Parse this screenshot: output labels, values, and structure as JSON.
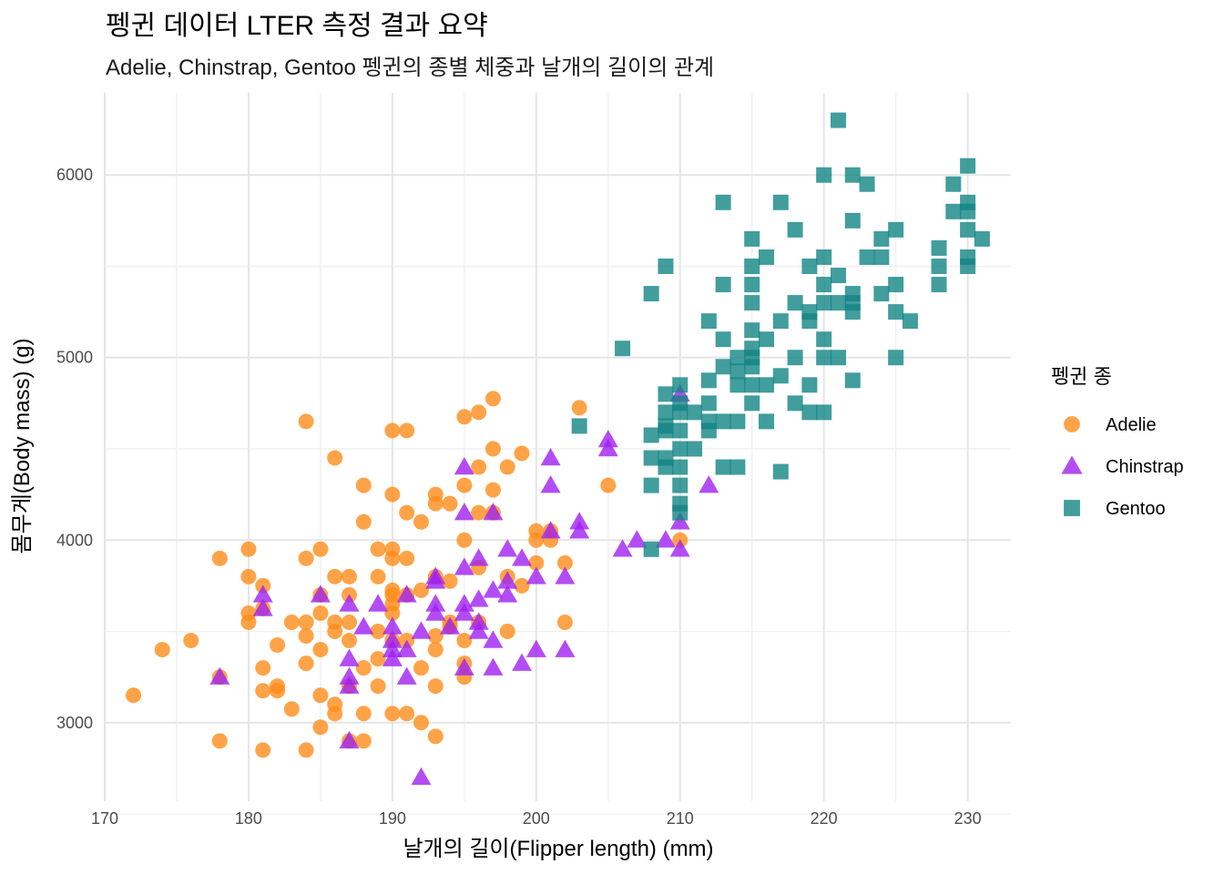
{
  "chart_data": {
    "type": "scatter",
    "title": "펭귄 데이터 LTER 측정 결과 요약",
    "subtitle": "Adelie, Chinstrap, Gentoo 펭귄의 종별 체중과 날개의 길이의 관계",
    "xlabel": "날개의 길이(Flipper length) (mm)",
    "ylabel": "몸무게(Body mass) (g)",
    "xlim": [
      170,
      233
    ],
    "ylim": [
      2570,
      6450
    ],
    "xticks": [
      170,
      180,
      190,
      200,
      210,
      220,
      230
    ],
    "yticks": [
      3000,
      4000,
      5000,
      6000
    ],
    "grid": true,
    "legend": {
      "title": "펭귄 종",
      "position": "right"
    },
    "series": [
      {
        "name": "Adelie",
        "color": "#FF8C1A",
        "shape": "circle",
        "points": [
          [
            172,
            3150
          ],
          [
            174,
            3400
          ],
          [
            176,
            3450
          ],
          [
            178,
            3900
          ],
          [
            178,
            2900
          ],
          [
            178,
            3250
          ],
          [
            180,
            3950
          ],
          [
            180,
            3800
          ],
          [
            180,
            3600
          ],
          [
            180,
            3550
          ],
          [
            181,
            3750
          ],
          [
            181,
            3300
          ],
          [
            181,
            3175
          ],
          [
            181,
            2850
          ],
          [
            181,
            3625
          ],
          [
            182,
            3425
          ],
          [
            182,
            3200
          ],
          [
            182,
            3175
          ],
          [
            183,
            3550
          ],
          [
            183,
            3075
          ],
          [
            184,
            4650
          ],
          [
            184,
            3900
          ],
          [
            184,
            3475
          ],
          [
            184,
            3325
          ],
          [
            184,
            2850
          ],
          [
            184,
            3550
          ],
          [
            185,
            3950
          ],
          [
            185,
            3700
          ],
          [
            185,
            3400
          ],
          [
            185,
            3150
          ],
          [
            185,
            2975
          ],
          [
            185,
            3600
          ],
          [
            186,
            4450
          ],
          [
            186,
            3800
          ],
          [
            186,
            3550
          ],
          [
            186,
            3500
          ],
          [
            186,
            3100
          ],
          [
            186,
            3050
          ],
          [
            187,
            3800
          ],
          [
            187,
            3700
          ],
          [
            187,
            3550
          ],
          [
            187,
            3450
          ],
          [
            187,
            3200
          ],
          [
            187,
            2900
          ],
          [
            188,
            4300
          ],
          [
            188,
            4100
          ],
          [
            188,
            3300
          ],
          [
            188,
            3050
          ],
          [
            188,
            2900
          ],
          [
            189,
            3950
          ],
          [
            189,
            3800
          ],
          [
            189,
            3500
          ],
          [
            189,
            3350
          ],
          [
            189,
            3200
          ],
          [
            190,
            4600
          ],
          [
            190,
            4250
          ],
          [
            190,
            3950
          ],
          [
            190,
            3900
          ],
          [
            190,
            3725
          ],
          [
            190,
            3700
          ],
          [
            190,
            3650
          ],
          [
            190,
            3600
          ],
          [
            190,
            3450
          ],
          [
            190,
            3050
          ],
          [
            191,
            4600
          ],
          [
            191,
            4150
          ],
          [
            191,
            3900
          ],
          [
            191,
            3700
          ],
          [
            191,
            3450
          ],
          [
            191,
            3050
          ],
          [
            192,
            4100
          ],
          [
            192,
            3725
          ],
          [
            192,
            3300
          ],
          [
            192,
            3000
          ],
          [
            193,
            4250
          ],
          [
            193,
            4200
          ],
          [
            193,
            3800
          ],
          [
            193,
            3475
          ],
          [
            193,
            3400
          ],
          [
            193,
            3200
          ],
          [
            193,
            2925
          ],
          [
            194,
            4200
          ],
          [
            194,
            3775
          ],
          [
            194,
            3550
          ],
          [
            194,
            3525
          ],
          [
            195,
            4675
          ],
          [
            195,
            4300
          ],
          [
            195,
            4000
          ],
          [
            195,
            3450
          ],
          [
            195,
            3325
          ],
          [
            195,
            3250
          ],
          [
            196,
            4700
          ],
          [
            196,
            4400
          ],
          [
            196,
            4150
          ],
          [
            196,
            3850
          ],
          [
            196,
            3550
          ],
          [
            197,
            4775
          ],
          [
            197,
            4500
          ],
          [
            197,
            4275
          ],
          [
            197,
            4150
          ],
          [
            198,
            4400
          ],
          [
            198,
            3500
          ],
          [
            198,
            3800
          ],
          [
            199,
            4475
          ],
          [
            199,
            3750
          ],
          [
            200,
            4050
          ],
          [
            200,
            4000
          ],
          [
            200,
            3875
          ],
          [
            201,
            4000
          ],
          [
            201,
            4050
          ],
          [
            202,
            3875
          ],
          [
            202,
            3550
          ],
          [
            203,
            4725
          ],
          [
            205,
            4300
          ],
          [
            210,
            4000
          ]
        ]
      },
      {
        "name": "Chinstrap",
        "color": "#A020F0",
        "shape": "triangle",
        "points": [
          [
            178,
            3250
          ],
          [
            181,
            3700
          ],
          [
            181,
            3625
          ],
          [
            185,
            3700
          ],
          [
            187,
            3650
          ],
          [
            187,
            3350
          ],
          [
            187,
            3250
          ],
          [
            187,
            3200
          ],
          [
            187,
            2900
          ],
          [
            188,
            3525
          ],
          [
            189,
            3650
          ],
          [
            190,
            3525
          ],
          [
            190,
            3450
          ],
          [
            190,
            3400
          ],
          [
            190,
            3350
          ],
          [
            191,
            3700
          ],
          [
            191,
            3400
          ],
          [
            191,
            3250
          ],
          [
            192,
            3500
          ],
          [
            192,
            2700
          ],
          [
            193,
            3800
          ],
          [
            193,
            3775
          ],
          [
            193,
            3650
          ],
          [
            193,
            3600
          ],
          [
            194,
            3525
          ],
          [
            195,
            4400
          ],
          [
            195,
            4150
          ],
          [
            195,
            3850
          ],
          [
            195,
            3650
          ],
          [
            195,
            3600
          ],
          [
            195,
            3300
          ],
          [
            196,
            3900
          ],
          [
            196,
            3675
          ],
          [
            196,
            3550
          ],
          [
            196,
            3500
          ],
          [
            197,
            4150
          ],
          [
            197,
            3725
          ],
          [
            197,
            3450
          ],
          [
            197,
            3300
          ],
          [
            198,
            3950
          ],
          [
            198,
            3775
          ],
          [
            198,
            3700
          ],
          [
            199,
            3900
          ],
          [
            199,
            3325
          ],
          [
            200,
            3800
          ],
          [
            201,
            4450
          ],
          [
            201,
            4300
          ],
          [
            201,
            4050
          ],
          [
            202,
            3800
          ],
          [
            202,
            3400
          ],
          [
            203,
            4100
          ],
          [
            203,
            4050
          ],
          [
            205,
            4550
          ],
          [
            205,
            4500
          ],
          [
            206,
            3950
          ],
          [
            207,
            4000
          ],
          [
            209,
            4000
          ],
          [
            210,
            4800
          ],
          [
            210,
            4100
          ],
          [
            210,
            3950
          ],
          [
            212,
            4300
          ],
          [
            200,
            3400
          ]
        ]
      },
      {
        "name": "Gentoo",
        "color": "#138585",
        "shape": "square",
        "points": [
          [
            203,
            4625
          ],
          [
            206,
            5050
          ],
          [
            208,
            5350
          ],
          [
            208,
            4575
          ],
          [
            208,
            4450
          ],
          [
            208,
            4300
          ],
          [
            208,
            3950
          ],
          [
            209,
            5500
          ],
          [
            209,
            4800
          ],
          [
            209,
            4700
          ],
          [
            209,
            4625
          ],
          [
            209,
            4600
          ],
          [
            209,
            4450
          ],
          [
            209,
            4400
          ],
          [
            210,
            4850
          ],
          [
            210,
            4750
          ],
          [
            210,
            4700
          ],
          [
            210,
            4600
          ],
          [
            210,
            4500
          ],
          [
            210,
            4400
          ],
          [
            210,
            4300
          ],
          [
            210,
            4200
          ],
          [
            210,
            4150
          ],
          [
            211,
            4700
          ],
          [
            211,
            4500
          ],
          [
            212,
            5200
          ],
          [
            212,
            4875
          ],
          [
            212,
            4750
          ],
          [
            212,
            4650
          ],
          [
            212,
            4600
          ],
          [
            213,
            5850
          ],
          [
            213,
            5400
          ],
          [
            213,
            5100
          ],
          [
            213,
            4950
          ],
          [
            213,
            4650
          ],
          [
            213,
            4400
          ],
          [
            214,
            5000
          ],
          [
            214,
            4925
          ],
          [
            214,
            4850
          ],
          [
            214,
            4650
          ],
          [
            214,
            4400
          ],
          [
            215,
            5650
          ],
          [
            215,
            5500
          ],
          [
            215,
            5400
          ],
          [
            215,
            5300
          ],
          [
            215,
            5150
          ],
          [
            215,
            5050
          ],
          [
            215,
            5000
          ],
          [
            215,
            4950
          ],
          [
            215,
            4850
          ],
          [
            215,
            4750
          ],
          [
            216,
            5550
          ],
          [
            216,
            5100
          ],
          [
            216,
            4850
          ],
          [
            216,
            4650
          ],
          [
            217,
            5850
          ],
          [
            217,
            5200
          ],
          [
            217,
            4900
          ],
          [
            217,
            4375
          ],
          [
            218,
            5700
          ],
          [
            218,
            5300
          ],
          [
            218,
            5000
          ],
          [
            218,
            4750
          ],
          [
            219,
            5500
          ],
          [
            219,
            5250
          ],
          [
            219,
            5200
          ],
          [
            219,
            4850
          ],
          [
            219,
            4700
          ],
          [
            220,
            6000
          ],
          [
            220,
            5550
          ],
          [
            220,
            5400
          ],
          [
            220,
            5300
          ],
          [
            220,
            5100
          ],
          [
            220,
            5000
          ],
          [
            220,
            4700
          ],
          [
            221,
            6300
          ],
          [
            221,
            5450
          ],
          [
            221,
            5300
          ],
          [
            221,
            5000
          ],
          [
            222,
            6000
          ],
          [
            222,
            5750
          ],
          [
            222,
            5350
          ],
          [
            222,
            5300
          ],
          [
            222,
            5250
          ],
          [
            222,
            4875
          ],
          [
            223,
            5950
          ],
          [
            223,
            5550
          ],
          [
            224,
            5650
          ],
          [
            224,
            5550
          ],
          [
            224,
            5350
          ],
          [
            225,
            5700
          ],
          [
            225,
            5400
          ],
          [
            225,
            5250
          ],
          [
            225,
            5000
          ],
          [
            226,
            5200
          ],
          [
            228,
            5600
          ],
          [
            228,
            5500
          ],
          [
            228,
            5400
          ],
          [
            229,
            5950
          ],
          [
            229,
            5800
          ],
          [
            230,
            6050
          ],
          [
            230,
            5850
          ],
          [
            230,
            5800
          ],
          [
            230,
            5700
          ],
          [
            230,
            5550
          ],
          [
            230,
            5500
          ],
          [
            231,
            5650
          ]
        ]
      }
    ]
  }
}
